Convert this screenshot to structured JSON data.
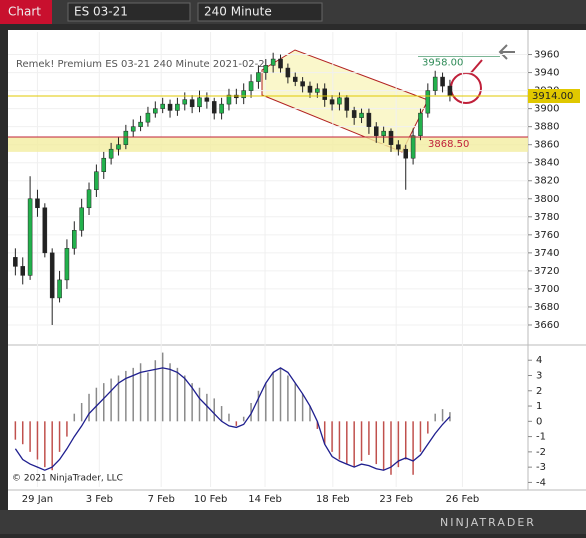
{
  "toolbar": {
    "title": "Chart",
    "instrument": "ES 03-21",
    "interval": "240 Minute"
  },
  "copyright": "© 2021 NinjaTrader, LLC",
  "brand": "NINJATRADER",
  "chart_data": [
    {
      "type": "candlestick",
      "title": "Remek!  Premium  ES 03-21  240 Minute  2021-02-2",
      "x": [
        0,
        1,
        2,
        3,
        4,
        5,
        6,
        7,
        8,
        9,
        10,
        11,
        12,
        13,
        14,
        15,
        16,
        17,
        18,
        19,
        20,
        21,
        22,
        23,
        24,
        25,
        26,
        27,
        28,
        29,
        30,
        31,
        32,
        33,
        34,
        35,
        36,
        37,
        38,
        39,
        40,
        41,
        42,
        43,
        44,
        45,
        46,
        47,
        48,
        49,
        50,
        51,
        52,
        53,
        54,
        55,
        56,
        57,
        58,
        59
      ],
      "open": [
        3735,
        3725,
        3715,
        3800,
        3790,
        3740,
        3690,
        3710,
        3745,
        3765,
        3790,
        3810,
        3830,
        3845,
        3855,
        3860,
        3875,
        3880,
        3885,
        3895,
        3900,
        3905,
        3898,
        3905,
        3910,
        3902,
        3912,
        3908,
        3895,
        3905,
        3915,
        3912,
        3920,
        3930,
        3940,
        3948,
        3955,
        3945,
        3935,
        3930,
        3925,
        3918,
        3922,
        3910,
        3905,
        3912,
        3898,
        3890,
        3895,
        3880,
        3870,
        3875,
        3860,
        3855,
        3845,
        3870,
        3895,
        3920,
        3935,
        3925
      ],
      "high": [
        3745,
        3735,
        3825,
        3810,
        3795,
        3745,
        3720,
        3755,
        3775,
        3800,
        3818,
        3838,
        3852,
        3862,
        3868,
        3882,
        3888,
        3892,
        3902,
        3908,
        3912,
        3910,
        3912,
        3918,
        3915,
        3920,
        3918,
        3912,
        3912,
        3922,
        3922,
        3928,
        3938,
        3948,
        3955,
        3962,
        3960,
        3950,
        3940,
        3935,
        3930,
        3928,
        3928,
        3915,
        3918,
        3915,
        3902,
        3900,
        3900,
        3885,
        3880,
        3878,
        3865,
        3860,
        3878,
        3900,
        3928,
        3942,
        3940,
        3932
      ],
      "low": [
        3715,
        3705,
        3710,
        3780,
        3735,
        3660,
        3685,
        3700,
        3738,
        3758,
        3782,
        3802,
        3822,
        3838,
        3848,
        3855,
        3868,
        3875,
        3880,
        3890,
        3895,
        3890,
        3892,
        3898,
        3895,
        3896,
        3900,
        3888,
        3888,
        3898,
        3905,
        3905,
        3912,
        3922,
        3932,
        3940,
        3940,
        3928,
        3925,
        3918,
        3912,
        3912,
        3902,
        3898,
        3898,
        3890,
        3882,
        3884,
        3872,
        3862,
        3862,
        3852,
        3848,
        3810,
        3838,
        3865,
        3890,
        3915,
        3918,
        3908
      ],
      "close": [
        3725,
        3715,
        3800,
        3790,
        3740,
        3690,
        3710,
        3745,
        3765,
        3790,
        3810,
        3830,
        3845,
        3855,
        3860,
        3875,
        3880,
        3885,
        3895,
        3900,
        3905,
        3898,
        3905,
        3910,
        3902,
        3912,
        3908,
        3895,
        3905,
        3915,
        3912,
        3920,
        3930,
        3940,
        3948,
        3955,
        3945,
        3935,
        3930,
        3925,
        3918,
        3922,
        3910,
        3905,
        3912,
        3898,
        3890,
        3895,
        3880,
        3870,
        3875,
        3860,
        3855,
        3845,
        3870,
        3895,
        3920,
        3935,
        3925,
        3914
      ],
      "up_color": "#22b14c",
      "down_color": "#222222",
      "xlim": [
        -1,
        69.6
      ],
      "xticks": [
        {
          "value": 3,
          "label": "29 Jan"
        },
        {
          "value": 11.4,
          "label": "3 Feb"
        },
        {
          "value": 19.8,
          "label": "7 Feb"
        },
        {
          "value": 26.5,
          "label": "10 Feb"
        },
        {
          "value": 33.9,
          "label": "14 Feb"
        },
        {
          "value": 43.1,
          "label": "18 Feb"
        },
        {
          "value": 51.7,
          "label": "23 Feb"
        },
        {
          "value": 60.7,
          "label": "26 Feb"
        }
      ],
      "ylim": [
        3640,
        3985
      ],
      "yticks": [
        3660,
        3680,
        3700,
        3720,
        3740,
        3760,
        3780,
        3800,
        3820,
        3840,
        3860,
        3880,
        3900,
        3920,
        3940,
        3960
      ],
      "grid": true,
      "zone": {
        "low": 3852,
        "high": 3868.5,
        "color": "#f3eda0"
      },
      "levels": [
        {
          "value": 3914,
          "label": "3914.00",
          "color": "#e0c800"
        },
        {
          "value": 3868.5,
          "label": "3868.50",
          "color": "#c0203a"
        },
        {
          "value": 3958,
          "label": "3958.00",
          "color": "#2e8b57"
        }
      ]
    },
    {
      "type": "histogram-line",
      "x": [
        0,
        1,
        2,
        3,
        4,
        5,
        6,
        7,
        8,
        9,
        10,
        11,
        12,
        13,
        14,
        15,
        16,
        17,
        18,
        19,
        20,
        21,
        22,
        23,
        24,
        25,
        26,
        27,
        28,
        29,
        30,
        31,
        32,
        33,
        34,
        35,
        36,
        37,
        38,
        39,
        40,
        41,
        42,
        43,
        44,
        45,
        46,
        47,
        48,
        49,
        50,
        51,
        52,
        53,
        54,
        55,
        56,
        57,
        58,
        59
      ],
      "histogram": [
        -1.2,
        -1.5,
        -2,
        -2.5,
        -3,
        -3.2,
        -2,
        -1,
        0.5,
        1.2,
        1.8,
        2.2,
        2.5,
        2.8,
        3,
        3.3,
        3.5,
        3.8,
        3.2,
        4,
        4.5,
        3.8,
        3.5,
        3,
        2.5,
        2.2,
        1.8,
        1.5,
        1,
        0.5,
        -0.3,
        0.3,
        1.2,
        2,
        2.5,
        3.2,
        3.5,
        3,
        2.5,
        1.8,
        1,
        -0.5,
        -1.5,
        -2,
        -2.5,
        -2.8,
        -3,
        -2.6,
        -2.2,
        -2.8,
        -3.2,
        -3.5,
        -3,
        -2.5,
        -3.5,
        -2,
        -0.8,
        0.5,
        0.8,
        0.6
      ],
      "line": [
        -1.8,
        -2.5,
        -2.8,
        -3,
        -3.2,
        -3,
        -2.5,
        -1.8,
        -1,
        -0.3,
        0.5,
        1,
        1.5,
        2,
        2.5,
        2.8,
        3,
        3.2,
        3.3,
        3.4,
        3.5,
        3.4,
        3.2,
        2.8,
        2.2,
        1.5,
        1,
        0.5,
        0,
        -0.3,
        -0.4,
        -0.2,
        0.5,
        1.5,
        2.5,
        3.2,
        3.5,
        3.2,
        2.5,
        1.8,
        1,
        0,
        -1.5,
        -2.3,
        -2.6,
        -2.8,
        -3,
        -2.8,
        -2.9,
        -3.1,
        -3.2,
        -3,
        -2.6,
        -2.4,
        -2.6,
        -2.2,
        -1.5,
        -0.8,
        -0.2,
        0.3
      ],
      "pos_color": "#8a8a8a",
      "neg_color": "#c0504d",
      "line_color": "#1f1f8f",
      "xlim": [
        -1,
        69.6
      ],
      "ylim": [
        -4.3,
        4.8
      ],
      "yticks": [
        -4,
        -3,
        -2,
        -1,
        0,
        1,
        2,
        3,
        4
      ]
    }
  ]
}
